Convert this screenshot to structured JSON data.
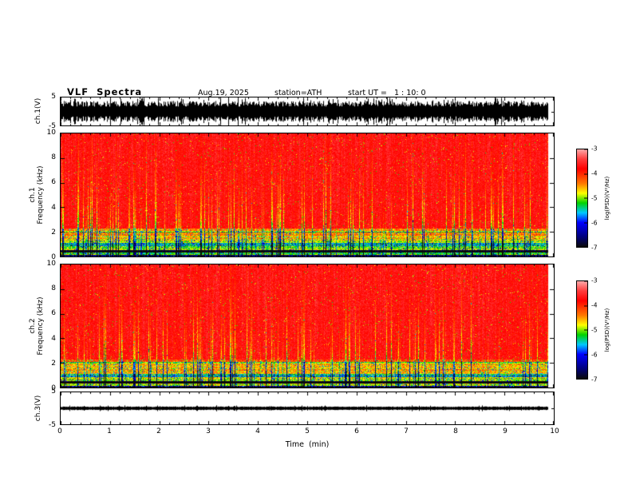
{
  "header": {
    "title": "VLF  Spectra",
    "date": "Aug.19, 2025",
    "station": "station=ATH",
    "start_ut": "start UT =   1 : 10: 0"
  },
  "panels": {
    "ch1_wave": {
      "ylabel": "ch.1(V)",
      "yticks": [
        "5",
        "-5"
      ]
    },
    "ch1_spec": {
      "ylabel_line1": "ch.1",
      "ylabel_line2": "Frequency  (kHz)",
      "yticks": [
        "10",
        "8",
        "6",
        "4",
        "2",
        "0"
      ]
    },
    "ch2_spec": {
      "ylabel_line1": "ch.2",
      "ylabel_line2": "Frequency  (kHz)",
      "yticks": [
        "10",
        "8",
        "6",
        "4",
        "2",
        "0"
      ]
    },
    "ch3_wave": {
      "ylabel": "ch.3(V)",
      "yticks": [
        "5",
        "-5"
      ]
    }
  },
  "xaxis": {
    "label": "Time  (min)",
    "ticks": [
      "0",
      "1",
      "2",
      "3",
      "4",
      "5",
      "6",
      "7",
      "8",
      "9",
      "10"
    ]
  },
  "colorbar": {
    "label": "log(PSD)(V²/Hz)",
    "ticks": [
      "-3",
      "-4",
      "-5",
      "-6",
      "-7"
    ],
    "range": [
      -7,
      -3
    ],
    "stops": [
      {
        "t": 1.0,
        "rgb": [
          255,
          170,
          170
        ]
      },
      {
        "t": 0.9,
        "rgb": [
          255,
          60,
          60
        ]
      },
      {
        "t": 0.8,
        "rgb": [
          255,
          0,
          0
        ]
      },
      {
        "t": 0.65,
        "rgb": [
          255,
          120,
          0
        ]
      },
      {
        "t": 0.55,
        "rgb": [
          255,
          255,
          0
        ]
      },
      {
        "t": 0.45,
        "rgb": [
          0,
          210,
          0
        ]
      },
      {
        "t": 0.35,
        "rgb": [
          0,
          200,
          255
        ]
      },
      {
        "t": 0.25,
        "rgb": [
          0,
          0,
          255
        ]
      },
      {
        "t": 0.1,
        "rgb": [
          0,
          0,
          120
        ]
      },
      {
        "t": 0.0,
        "rgb": [
          10,
          10,
          10
        ]
      }
    ]
  },
  "chart_data": [
    {
      "type": "line",
      "title": "ch.1 time series",
      "ylabel": "ch.1(V)",
      "xlabel": "Time (min)",
      "xlim": [
        0,
        10
      ],
      "ylim": [
        -5,
        5
      ],
      "x_end_of_data": 9.8,
      "description": "Dense broadband black noise waveform filling roughly ±3 V continuously, with frequent spikes reaching ±5 V, from 0 to about 9.8 min."
    },
    {
      "type": "heatmap",
      "title": "ch.1 spectrogram",
      "ylabel": "ch.1 Frequency (kHz)",
      "xlabel": "Time (min)",
      "xlim": [
        0,
        10
      ],
      "ylim": [
        0,
        10
      ],
      "zlabel": "log(PSD)(V²/Hz)",
      "zlim": [
        -7,
        -3
      ],
      "x_end_of_data": 9.8,
      "pattern": {
        "background_level": -3.6,
        "low_band_kHz": [
          0,
          2.2
        ],
        "low_band_level": -5.0,
        "vertical_stripe_level": -4.8,
        "dark_line_kHz": 0.45,
        "dark_line_level": -6.5
      },
      "description": "Saturated red background (≈ -3.5 to -4) above ~2 kHz, dense vertical yellow/green impulsive stripes (sferics) strongest at low frequency, yellow-green-cyan band with horizontal fine structure below ~2 kHz, and a dark narrow horizontal line near 0.4-0.5 kHz."
    },
    {
      "type": "heatmap",
      "title": "ch.2 spectrogram",
      "ylabel": "ch.2 Frequency (kHz)",
      "xlabel": "Time (min)",
      "xlim": [
        0,
        10
      ],
      "ylim": [
        0,
        10
      ],
      "zlabel": "log(PSD)(V²/Hz)",
      "zlim": [
        -7,
        -3
      ],
      "x_end_of_data": 9.8,
      "pattern": {
        "background_level": -3.6,
        "low_band_kHz": [
          0,
          2.2
        ],
        "low_band_level": -5.0,
        "vertical_stripe_level": -4.8,
        "dark_line_kHz": 0.45,
        "dark_line_level": -6.5
      },
      "description": "Same structure as ch.1 spectrogram: red broadband background with vertical impulsive stripes and a green/yellow structured band below ~2 kHz."
    },
    {
      "type": "line",
      "title": "ch.3 time series",
      "ylabel": "ch.3(V)",
      "xlabel": "Time (min)",
      "xlim": [
        0,
        10
      ],
      "ylim": [
        -5,
        5
      ],
      "x_end_of_data": 9.8,
      "description": "Quiet flat trace: thick black line at ~0 V with only tiny fluctuations, from 0 to about 9.8 min."
    }
  ]
}
